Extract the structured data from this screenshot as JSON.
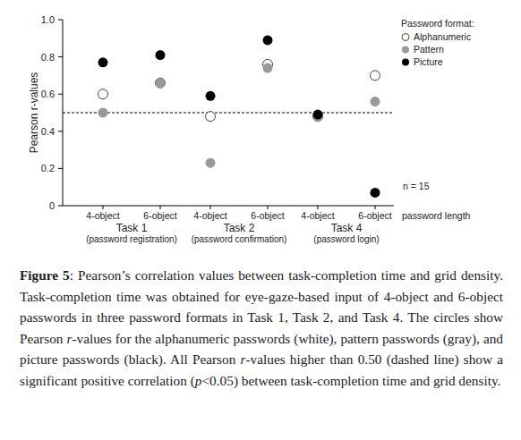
{
  "chart_data": {
    "type": "scatter",
    "y_label": "Pearson r-values",
    "x_label": "password length",
    "categories": [
      "4-object",
      "6-object",
      "4-object",
      "6-object",
      "4-object",
      "6-object"
    ],
    "groups": [
      {
        "name": "Task 1",
        "description": "(password registration)"
      },
      {
        "name": "Task 2",
        "description": "(password confirmation)"
      },
      {
        "name": "Task 4",
        "description": "(password login)"
      }
    ],
    "series": [
      {
        "name": "Alphanumeric",
        "color": "#ffffff",
        "marker": "circle",
        "values": [
          0.6,
          0.66,
          0.48,
          0.76,
          0.48,
          0.7
        ]
      },
      {
        "name": "Pattern",
        "color": "#999999",
        "marker": "circle",
        "values": [
          0.5,
          0.66,
          0.23,
          0.74,
          0.48,
          0.56
        ]
      },
      {
        "name": "Picture",
        "color": "#000000",
        "marker": "circle",
        "values": [
          0.77,
          0.81,
          0.59,
          0.89,
          0.49,
          0.07
        ]
      }
    ],
    "legend_title": "Password format:",
    "legend": "top-right",
    "ylim": [
      0,
      1
    ],
    "yticks": [
      0,
      0.2,
      0.4,
      0.6,
      0.8,
      {
        "value": 1,
        "label": "1.0"
      }
    ],
    "reference_line": {
      "value": 0.5,
      "line_style": "dashed"
    },
    "annotations": [
      {
        "text": "n = 15"
      }
    ],
    "grid": false
  },
  "caption": [
    {
      "text": "Figure 5",
      "style": "bold"
    },
    {
      "text": ": Pearson’s correlation values between task-completion time and grid density. Task-completion time was obtained for eye-gaze-based input of 4-object and 6-object passwords in three password formats in Task 1, Task 2, and Task 4. The circles show Pearson ",
      "style": "normal"
    },
    {
      "text": "r",
      "style": "italic"
    },
    {
      "text": "-values for the alphanumeric passwords (white), pattern passwords (gray), and picture passwords (black). All Pearson ",
      "style": "normal"
    },
    {
      "text": "r",
      "style": "italic"
    },
    {
      "text": "-values higher than 0.50 (dashed line) show a significant positive correlation (",
      "style": "normal"
    },
    {
      "text": "p",
      "style": "italic"
    },
    {
      "text": "<0.05) between task-completion time and grid density.",
      "style": "normal"
    }
  ]
}
